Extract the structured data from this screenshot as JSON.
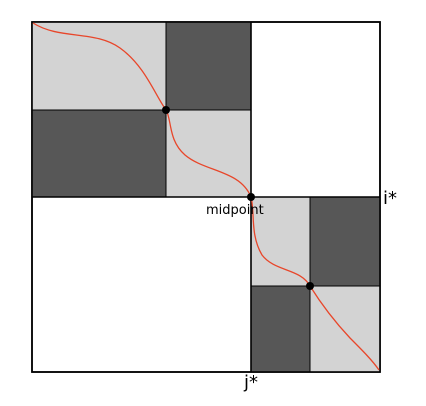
{
  "labels": {
    "midpoint": "midpoint",
    "i_star": "i*",
    "j_star": "j*"
  },
  "colors": {
    "background": "#ffffff",
    "outline": "#000000",
    "light_block": "#d3d3d3",
    "dark_block": "#575757",
    "path": "#e8462a",
    "point": "#000000"
  }
}
